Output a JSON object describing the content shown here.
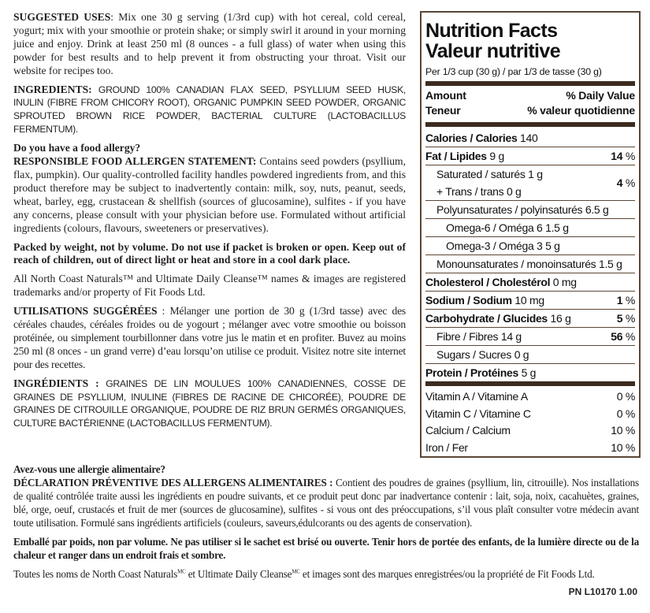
{
  "left": {
    "suggested_uses": {
      "lead": "SUGGESTED USES",
      "text": ": Mix one 30 g serving (1/3rd cup) with hot cereal, cold cereal, yogurt; mix with your smoothie or protein shake; or simply swirl it around in your morning juice and enjoy. Drink at least 250 ml (8 ounces - a full glass) of water when using this powder for best results and to help prevent it from obstructing your throat. Visit our website for recipes too."
    },
    "ingredients": {
      "lead": "INGREDIENTS:",
      "text": " GROUND 100% CANADIAN FLAX SEED, PSYLLIUM SEED HUSK, INULIN (FIBRE FROM CHICORY ROOT), ORGANIC PUMPKIN SEED POWDER, ORGANIC SPROUTED BROWN RICE POWDER, BACTERIAL CULTURE (LACTOBACILLUS FERMENTUM)."
    },
    "allergy_q": "Do you have a food allergy?",
    "allergen": {
      "lead": "RESPONSIBLE FOOD ALLERGEN STATEMENT:",
      "text": " Contains seed powders (psyllium, flax, pumpkin). Our quality-controlled facility handles powdered ingredients from, and this product therefore may be subject to inadvertently contain: milk, soy, nuts, peanut, seeds, wheat, barley, egg, crustacean & shellfish (sources of glucosamine), sulfites - if you have any concerns, please consult with your physician before use. Formulated without artificial ingredients (colours, flavours, sweeteners or preservatives)."
    },
    "packed": "Packed by weight, not by volume. Do not use if packet is broken or open. Keep out of reach of children, out of direct light or heat and store in a cool dark place.",
    "trademark": "All North Coast Naturals™ and Ultimate Daily Cleanse™ names & images are registered trademarks and/or property of Fit Foods Ltd.",
    "fr_uses": {
      "lead": "UTILISATIONS SUGGÉRÉES",
      "text": " : Mélanger une portion de 30 g (1/3rd tasse) avec des céréales chaudes, céréales froides ou de yogourt ; mélanger avec votre smoothie ou boisson protéinée, ou simplement tourbillonner dans votre jus le matin et en profiter. Buvez au moins 250 ml (8 onces - un grand verre) d’eau lorsqu’on utilise ce produit. Visitez notre site internet  pour des recettes."
    },
    "fr_ingredients": {
      "lead": "INGRÉDIENTS :",
      "text": " GRAINES DE LIN MOULUES 100% CANADIENNES, COSSE DE GRAINES DE PSYLLIUM, INULINE (FIBRES DE RACINE DE CHICORÉE), POUDRE DE GRAINES DE CITROUILLE ORGANIQUE, POUDRE DE RIZ BRUN GERMÉS ORGANIQUES, CULTURE BACTÉRIENNE (LACTOBACILLUS FERMENTUM)."
    }
  },
  "bottom": {
    "allergy_q": "Avez-vous une allergie alimentaire?",
    "allergen": {
      "lead": "DÉCLARATION PRÉVENTIVE DES ALLERGENS ALIMENTAIRES :",
      "text": " Contient des poudres de graines (psyllium, lin, citrouille). Nos installations de qualité contrôlée traite aussi les ingrédients en poudre suivants, et ce produit peut donc par inadvertance contenir : lait, soja, noix, cacahuètes, graines, blé, orge, oeuf, crustacés et fruit de mer (sources de glucosamine), sulfites - si vous ont des préoccupations, s’il vous plaît consulter votre médecin avant toute utilisation. Formulé sans ingrédients artificiels (couleurs, saveurs,édulcorants ou des agents de conservation)."
    },
    "packed": "Emballé par  poids, non par volume. Ne pas utiliser si le sachet est brisé ou ouverte. Tenir hors de portée des enfants, de la lumière directe ou de la chaleur et ranger dans un endroit frais et sombre.",
    "trademark": {
      "a": "Toutes les noms de North Coast Naturals",
      "sup1": "MC",
      "b": " et Ultimate Daily Cleanse",
      "sup2": "MC",
      "c": "  et images sont des marques enregistrées/ou la propriété de Fit Foods Ltd."
    },
    "part_number": "PN L10170 1.00"
  },
  "nutrition": {
    "title_en": "Nutrition Facts",
    "title_fr": "Valeur nutritive",
    "serving": "Per 1/3 cup (30 g) / par 1/3 de tasse (30 g)",
    "amount": "Amount",
    "dv": "% Daily Value",
    "teneur": "Teneur",
    "vq": "% valeur quotidienne",
    "border_color": "#5b4636",
    "rows": [
      {
        "bold": "Calories / Calories",
        "value": " 140",
        "pct_bold": "",
        "pct": ""
      },
      {
        "bold": "Fat / Lipides",
        "value": " 9 g",
        "pct_bold": "14",
        "pct": " %"
      },
      {
        "label": "Saturated / saturés 1 g",
        "label2": "+ Trans / trans 0 g",
        "pct_bold": "4",
        "pct": " %"
      },
      {
        "label": "Polyunsaturates / polyinsaturés 6.5 g"
      },
      {
        "label": "Omega-6 / Oméga 6  1.5 g"
      },
      {
        "label": "Omega-3 / Oméga 3  5 g"
      },
      {
        "label": "Monounsaturates / monoinsaturés 1.5 g"
      },
      {
        "bold": "Cholesterol / Cholestérol",
        "value": " 0 mg"
      },
      {
        "bold": "Sodium / Sodium",
        "value": " 10 mg",
        "pct_bold": "1",
        "pct": " %"
      },
      {
        "bold": "Carbohydrate / Glucides",
        "value": " 16 g",
        "pct_bold": "5",
        "pct": " %"
      },
      {
        "label": "Fibre / Fibres 14 g",
        "pct_bold": "56",
        "pct": " %"
      },
      {
        "label": "Sugars / Sucres 0 g"
      },
      {
        "bold": "Protein / Protéines",
        "value": " 5 g"
      }
    ],
    "vitamins": [
      {
        "label": "Vitamin A / Vitamine A",
        "pct": "0 %"
      },
      {
        "label": "Vitamin C / Vitamine C",
        "pct": "0 %"
      },
      {
        "label": "Calcium / Calcium",
        "pct": "10 %"
      },
      {
        "label": "Iron / Fer",
        "pct": "10 %"
      }
    ]
  }
}
